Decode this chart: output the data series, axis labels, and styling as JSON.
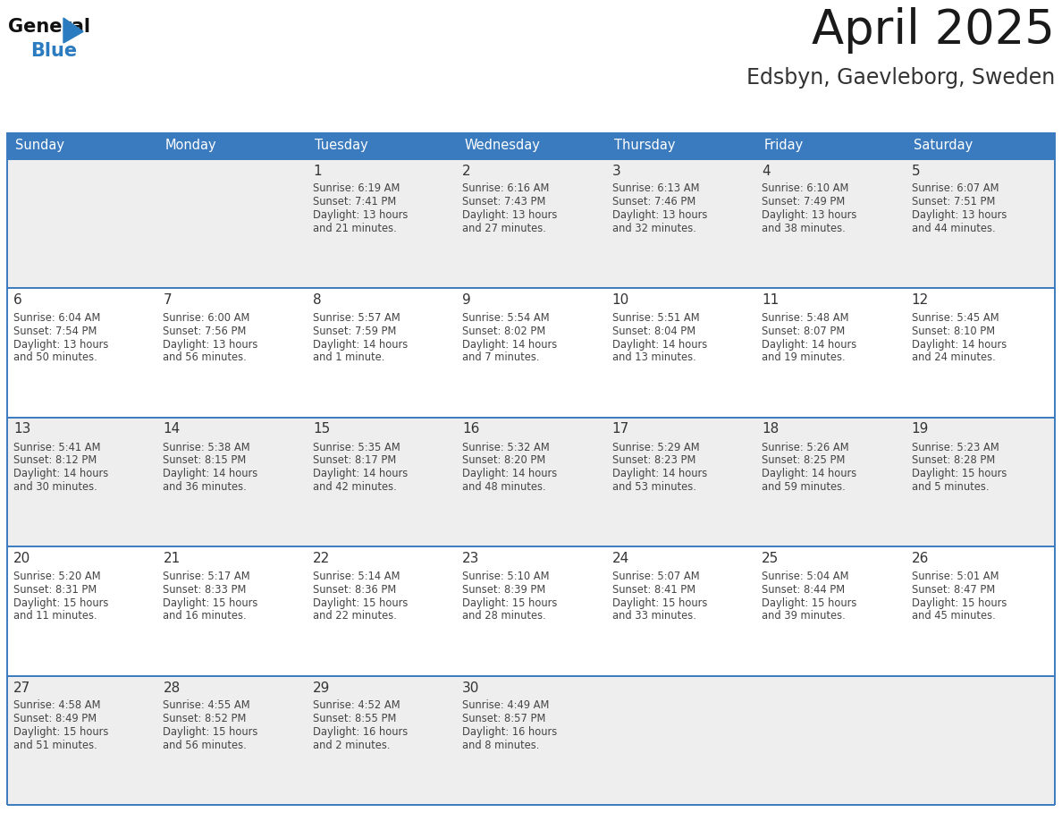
{
  "title": "April 2025",
  "subtitle": "Edsbyn, Gaevleborg, Sweden",
  "days_of_week": [
    "Sunday",
    "Monday",
    "Tuesday",
    "Wednesday",
    "Thursday",
    "Friday",
    "Saturday"
  ],
  "header_bg_color": "#3a7bbf",
  "header_text_color": "#ffffff",
  "cell_bg_light": "#eeeeee",
  "cell_bg_white": "#ffffff",
  "cell_border_color": "#3a7bbf",
  "day_num_color": "#333333",
  "text_color": "#444444",
  "title_color": "#1a1a1a",
  "subtitle_color": "#333333",
  "logo_general_color": "#111111",
  "logo_blue_color": "#2a7bbf",
  "weeks": [
    [
      {
        "date": "",
        "sunrise": "",
        "sunset": "",
        "daylight": ""
      },
      {
        "date": "",
        "sunrise": "",
        "sunset": "",
        "daylight": ""
      },
      {
        "date": "1",
        "sunrise": "6:19 AM",
        "sunset": "7:41 PM",
        "daylight": "13 hours and 21 minutes."
      },
      {
        "date": "2",
        "sunrise": "6:16 AM",
        "sunset": "7:43 PM",
        "daylight": "13 hours and 27 minutes."
      },
      {
        "date": "3",
        "sunrise": "6:13 AM",
        "sunset": "7:46 PM",
        "daylight": "13 hours and 32 minutes."
      },
      {
        "date": "4",
        "sunrise": "6:10 AM",
        "sunset": "7:49 PM",
        "daylight": "13 hours and 38 minutes."
      },
      {
        "date": "5",
        "sunrise": "6:07 AM",
        "sunset": "7:51 PM",
        "daylight": "13 hours and 44 minutes."
      }
    ],
    [
      {
        "date": "6",
        "sunrise": "6:04 AM",
        "sunset": "7:54 PM",
        "daylight": "13 hours and 50 minutes."
      },
      {
        "date": "7",
        "sunrise": "6:00 AM",
        "sunset": "7:56 PM",
        "daylight": "13 hours and 56 minutes."
      },
      {
        "date": "8",
        "sunrise": "5:57 AM",
        "sunset": "7:59 PM",
        "daylight": "14 hours and 1 minute."
      },
      {
        "date": "9",
        "sunrise": "5:54 AM",
        "sunset": "8:02 PM",
        "daylight": "14 hours and 7 minutes."
      },
      {
        "date": "10",
        "sunrise": "5:51 AM",
        "sunset": "8:04 PM",
        "daylight": "14 hours and 13 minutes."
      },
      {
        "date": "11",
        "sunrise": "5:48 AM",
        "sunset": "8:07 PM",
        "daylight": "14 hours and 19 minutes."
      },
      {
        "date": "12",
        "sunrise": "5:45 AM",
        "sunset": "8:10 PM",
        "daylight": "14 hours and 24 minutes."
      }
    ],
    [
      {
        "date": "13",
        "sunrise": "5:41 AM",
        "sunset": "8:12 PM",
        "daylight": "14 hours and 30 minutes."
      },
      {
        "date": "14",
        "sunrise": "5:38 AM",
        "sunset": "8:15 PM",
        "daylight": "14 hours and 36 minutes."
      },
      {
        "date": "15",
        "sunrise": "5:35 AM",
        "sunset": "8:17 PM",
        "daylight": "14 hours and 42 minutes."
      },
      {
        "date": "16",
        "sunrise": "5:32 AM",
        "sunset": "8:20 PM",
        "daylight": "14 hours and 48 minutes."
      },
      {
        "date": "17",
        "sunrise": "5:29 AM",
        "sunset": "8:23 PM",
        "daylight": "14 hours and 53 minutes."
      },
      {
        "date": "18",
        "sunrise": "5:26 AM",
        "sunset": "8:25 PM",
        "daylight": "14 hours and 59 minutes."
      },
      {
        "date": "19",
        "sunrise": "5:23 AM",
        "sunset": "8:28 PM",
        "daylight": "15 hours and 5 minutes."
      }
    ],
    [
      {
        "date": "20",
        "sunrise": "5:20 AM",
        "sunset": "8:31 PM",
        "daylight": "15 hours and 11 minutes."
      },
      {
        "date": "21",
        "sunrise": "5:17 AM",
        "sunset": "8:33 PM",
        "daylight": "15 hours and 16 minutes."
      },
      {
        "date": "22",
        "sunrise": "5:14 AM",
        "sunset": "8:36 PM",
        "daylight": "15 hours and 22 minutes."
      },
      {
        "date": "23",
        "sunrise": "5:10 AM",
        "sunset": "8:39 PM",
        "daylight": "15 hours and 28 minutes."
      },
      {
        "date": "24",
        "sunrise": "5:07 AM",
        "sunset": "8:41 PM",
        "daylight": "15 hours and 33 minutes."
      },
      {
        "date": "25",
        "sunrise": "5:04 AM",
        "sunset": "8:44 PM",
        "daylight": "15 hours and 39 minutes."
      },
      {
        "date": "26",
        "sunrise": "5:01 AM",
        "sunset": "8:47 PM",
        "daylight": "15 hours and 45 minutes."
      }
    ],
    [
      {
        "date": "27",
        "sunrise": "4:58 AM",
        "sunset": "8:49 PM",
        "daylight": "15 hours and 51 minutes."
      },
      {
        "date": "28",
        "sunrise": "4:55 AM",
        "sunset": "8:52 PM",
        "daylight": "15 hours and 56 minutes."
      },
      {
        "date": "29",
        "sunrise": "4:52 AM",
        "sunset": "8:55 PM",
        "daylight": "16 hours and 2 minutes."
      },
      {
        "date": "30",
        "sunrise": "4:49 AM",
        "sunset": "8:57 PM",
        "daylight": "16 hours and 8 minutes."
      },
      {
        "date": "",
        "sunrise": "",
        "sunset": "",
        "daylight": ""
      },
      {
        "date": "",
        "sunrise": "",
        "sunset": "",
        "daylight": ""
      },
      {
        "date": "",
        "sunrise": "",
        "sunset": "",
        "daylight": ""
      }
    ]
  ]
}
